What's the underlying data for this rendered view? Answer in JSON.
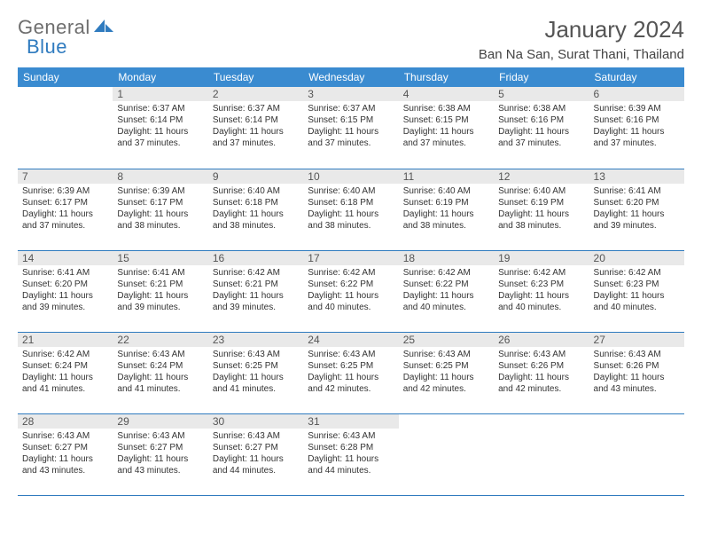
{
  "logo": {
    "part1": "General",
    "part2": "Blue"
  },
  "title": "January 2024",
  "location": "Ban Na San, Surat Thani, Thailand",
  "colors": {
    "header_bg": "#3a8bd0",
    "border": "#2f7bbf",
    "logo_gray": "#6e6e6e",
    "logo_blue": "#2f7bbf",
    "shade_bg": "#e9e9e9",
    "text": "#333333"
  },
  "days_of_week": [
    "Sunday",
    "Monday",
    "Tuesday",
    "Wednesday",
    "Thursday",
    "Friday",
    "Saturday"
  ],
  "first_weekday_offset": 1,
  "num_days": 31,
  "cells": {
    "1": {
      "sr": "6:37 AM",
      "ss": "6:14 PM",
      "dl": "11 hours and 37 minutes."
    },
    "2": {
      "sr": "6:37 AM",
      "ss": "6:14 PM",
      "dl": "11 hours and 37 minutes."
    },
    "3": {
      "sr": "6:37 AM",
      "ss": "6:15 PM",
      "dl": "11 hours and 37 minutes."
    },
    "4": {
      "sr": "6:38 AM",
      "ss": "6:15 PM",
      "dl": "11 hours and 37 minutes."
    },
    "5": {
      "sr": "6:38 AM",
      "ss": "6:16 PM",
      "dl": "11 hours and 37 minutes."
    },
    "6": {
      "sr": "6:39 AM",
      "ss": "6:16 PM",
      "dl": "11 hours and 37 minutes."
    },
    "7": {
      "sr": "6:39 AM",
      "ss": "6:17 PM",
      "dl": "11 hours and 37 minutes."
    },
    "8": {
      "sr": "6:39 AM",
      "ss": "6:17 PM",
      "dl": "11 hours and 38 minutes."
    },
    "9": {
      "sr": "6:40 AM",
      "ss": "6:18 PM",
      "dl": "11 hours and 38 minutes."
    },
    "10": {
      "sr": "6:40 AM",
      "ss": "6:18 PM",
      "dl": "11 hours and 38 minutes."
    },
    "11": {
      "sr": "6:40 AM",
      "ss": "6:19 PM",
      "dl": "11 hours and 38 minutes."
    },
    "12": {
      "sr": "6:40 AM",
      "ss": "6:19 PM",
      "dl": "11 hours and 38 minutes."
    },
    "13": {
      "sr": "6:41 AM",
      "ss": "6:20 PM",
      "dl": "11 hours and 39 minutes."
    },
    "14": {
      "sr": "6:41 AM",
      "ss": "6:20 PM",
      "dl": "11 hours and 39 minutes."
    },
    "15": {
      "sr": "6:41 AM",
      "ss": "6:21 PM",
      "dl": "11 hours and 39 minutes."
    },
    "16": {
      "sr": "6:42 AM",
      "ss": "6:21 PM",
      "dl": "11 hours and 39 minutes."
    },
    "17": {
      "sr": "6:42 AM",
      "ss": "6:22 PM",
      "dl": "11 hours and 40 minutes."
    },
    "18": {
      "sr": "6:42 AM",
      "ss": "6:22 PM",
      "dl": "11 hours and 40 minutes."
    },
    "19": {
      "sr": "6:42 AM",
      "ss": "6:23 PM",
      "dl": "11 hours and 40 minutes."
    },
    "20": {
      "sr": "6:42 AM",
      "ss": "6:23 PM",
      "dl": "11 hours and 40 minutes."
    },
    "21": {
      "sr": "6:42 AM",
      "ss": "6:24 PM",
      "dl": "11 hours and 41 minutes."
    },
    "22": {
      "sr": "6:43 AM",
      "ss": "6:24 PM",
      "dl": "11 hours and 41 minutes."
    },
    "23": {
      "sr": "6:43 AM",
      "ss": "6:25 PM",
      "dl": "11 hours and 41 minutes."
    },
    "24": {
      "sr": "6:43 AM",
      "ss": "6:25 PM",
      "dl": "11 hours and 42 minutes."
    },
    "25": {
      "sr": "6:43 AM",
      "ss": "6:25 PM",
      "dl": "11 hours and 42 minutes."
    },
    "26": {
      "sr": "6:43 AM",
      "ss": "6:26 PM",
      "dl": "11 hours and 42 minutes."
    },
    "27": {
      "sr": "6:43 AM",
      "ss": "6:26 PM",
      "dl": "11 hours and 43 minutes."
    },
    "28": {
      "sr": "6:43 AM",
      "ss": "6:27 PM",
      "dl": "11 hours and 43 minutes."
    },
    "29": {
      "sr": "6:43 AM",
      "ss": "6:27 PM",
      "dl": "11 hours and 43 minutes."
    },
    "30": {
      "sr": "6:43 AM",
      "ss": "6:27 PM",
      "dl": "11 hours and 44 minutes."
    },
    "31": {
      "sr": "6:43 AM",
      "ss": "6:28 PM",
      "dl": "11 hours and 44 minutes."
    }
  },
  "labels": {
    "sunrise": "Sunrise:",
    "sunset": "Sunset:",
    "daylight": "Daylight:"
  }
}
